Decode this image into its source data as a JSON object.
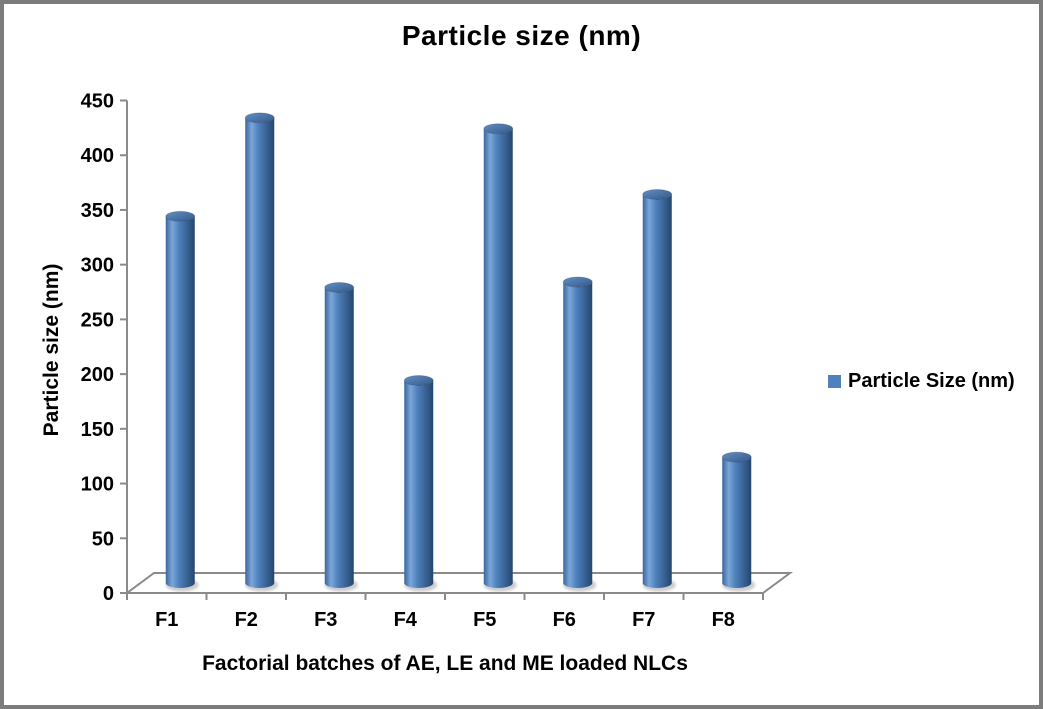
{
  "window": {
    "background": "#ffffff",
    "frame_border_color": "#7c7c7c"
  },
  "chart_data": {
    "type": "bar",
    "substyle": "3d-cylinder",
    "title": "Particle size (nm)",
    "xlabel": "Factorial batches of AE, LE and ME loaded NLCs",
    "ylabel": "Particle size (nm)",
    "categories": [
      "F1",
      "F2",
      "F3",
      "F4",
      "F5",
      "F6",
      "F7",
      "F8"
    ],
    "series": [
      {
        "name": "Particle Size (nm)",
        "values": [
          335,
          425,
          270,
          185,
          415,
          275,
          355,
          115
        ]
      }
    ],
    "ylim": [
      0,
      450
    ],
    "yticks": [
      0,
      50,
      100,
      150,
      200,
      250,
      300,
      350,
      400,
      450
    ],
    "grid": false,
    "legend_position": "right",
    "colors": {
      "bar_fill_base": "#4f81bd",
      "bar_body_gradient": [
        "#3a669e",
        "#7ba6d9",
        "#4f81bd",
        "#24466e"
      ],
      "bar_top_gradient": [
        "#6190c5",
        "#35588a"
      ],
      "axis_line": "#8a8a8a",
      "text": "#000000"
    }
  }
}
